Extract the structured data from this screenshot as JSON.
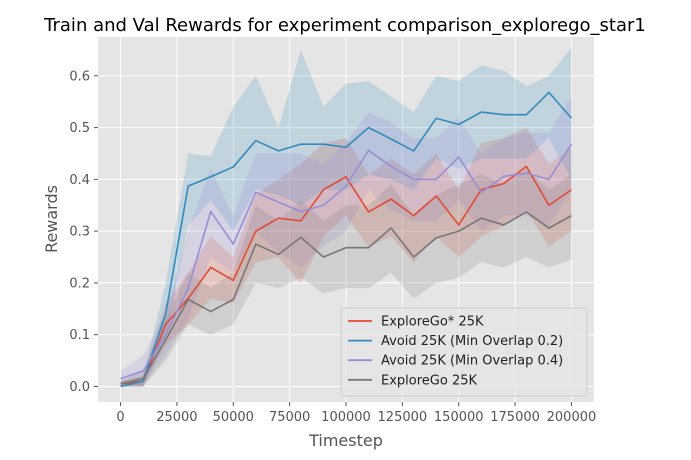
{
  "chart_data": {
    "type": "line",
    "title": "Train and Val Rewards for experiment comparison_explorego_star1",
    "xlabel": "Timestep",
    "ylabel": "Rewards",
    "xlim": [
      -10000,
      210000
    ],
    "ylim": [
      -0.03,
      0.675
    ],
    "xticks": [
      0,
      25000,
      50000,
      75000,
      100000,
      125000,
      150000,
      175000,
      200000
    ],
    "yticks": [
      0.0,
      0.1,
      0.2,
      0.3,
      0.4,
      0.5,
      0.6
    ],
    "ytick_labels": [
      "0.0",
      "0.1",
      "0.2",
      "0.3",
      "0.4",
      "0.5",
      "0.6"
    ],
    "grid": true,
    "legend_position": "lower-right",
    "x": [
      0,
      10000,
      20000,
      30000,
      40000,
      50000,
      60000,
      70000,
      80000,
      90000,
      100000,
      110000,
      120000,
      130000,
      140000,
      150000,
      160000,
      170000,
      180000,
      190000,
      200000
    ],
    "series": [
      {
        "name": "ExploreGo* 25K",
        "color": "#E24A33",
        "values": [
          0.005,
          0.01,
          0.12,
          0.17,
          0.23,
          0.205,
          0.3,
          0.325,
          0.32,
          0.38,
          0.405,
          0.337,
          0.362,
          0.33,
          0.368,
          0.312,
          0.38,
          0.392,
          0.425,
          0.35,
          0.38
        ],
        "lower": [
          0.0,
          0.0,
          0.08,
          0.12,
          0.17,
          0.16,
          0.24,
          0.25,
          0.2,
          0.29,
          0.33,
          0.27,
          0.29,
          0.24,
          0.29,
          0.25,
          0.29,
          0.31,
          0.34,
          0.27,
          0.3
        ],
        "upper": [
          0.01,
          0.02,
          0.16,
          0.22,
          0.29,
          0.25,
          0.37,
          0.4,
          0.43,
          0.47,
          0.48,
          0.41,
          0.44,
          0.41,
          0.45,
          0.38,
          0.47,
          0.48,
          0.5,
          0.43,
          0.46
        ]
      },
      {
        "name": "Avoid 25K (Min Overlap 0.2)",
        "color": "#348ABD",
        "values": [
          0.0,
          0.01,
          0.14,
          0.387,
          0.405,
          0.424,
          0.475,
          0.455,
          0.468,
          0.468,
          0.462,
          0.5,
          0.478,
          0.455,
          0.518,
          0.506,
          0.53,
          0.525,
          0.525,
          0.568,
          0.518
        ],
        "lower": [
          0.0,
          0.0,
          0.09,
          0.31,
          0.36,
          0.3,
          0.38,
          0.37,
          0.35,
          0.38,
          0.38,
          0.41,
          0.4,
          0.38,
          0.44,
          0.42,
          0.44,
          0.44,
          0.44,
          0.48,
          0.4
        ],
        "upper": [
          0.01,
          0.02,
          0.2,
          0.45,
          0.445,
          0.54,
          0.6,
          0.5,
          0.65,
          0.54,
          0.585,
          0.59,
          0.56,
          0.53,
          0.6,
          0.59,
          0.62,
          0.61,
          0.58,
          0.6,
          0.655
        ]
      },
      {
        "name": "Avoid 25K (Min Overlap 0.4)",
        "color": "#988ED5",
        "values": [
          0.015,
          0.03,
          0.1,
          0.19,
          0.338,
          0.275,
          0.375,
          0.356,
          0.338,
          0.35,
          0.387,
          0.456,
          0.425,
          0.4,
          0.4,
          0.443,
          0.375,
          0.406,
          0.412,
          0.4,
          0.468
        ],
        "lower": [
          0.0,
          0.0,
          0.06,
          0.13,
          0.25,
          0.22,
          0.3,
          0.26,
          0.23,
          0.27,
          0.3,
          0.38,
          0.34,
          0.32,
          0.32,
          0.36,
          0.3,
          0.33,
          0.33,
          0.31,
          0.38
        ],
        "upper": [
          0.03,
          0.06,
          0.14,
          0.3,
          0.42,
          0.33,
          0.45,
          0.45,
          0.45,
          0.43,
          0.47,
          0.53,
          0.51,
          0.48,
          0.48,
          0.52,
          0.45,
          0.48,
          0.49,
          0.49,
          0.56
        ]
      },
      {
        "name": "ExploreGo 25K",
        "color": "#777777",
        "values": [
          0.005,
          0.015,
          0.09,
          0.168,
          0.145,
          0.168,
          0.275,
          0.255,
          0.288,
          0.25,
          0.268,
          0.268,
          0.306,
          0.25,
          0.287,
          0.3,
          0.325,
          0.312,
          0.337,
          0.306,
          0.33
        ],
        "lower": [
          0.0,
          0.0,
          0.05,
          0.12,
          0.1,
          0.12,
          0.2,
          0.19,
          0.21,
          0.18,
          0.19,
          0.19,
          0.22,
          0.17,
          0.2,
          0.21,
          0.24,
          0.23,
          0.25,
          0.23,
          0.245
        ],
        "upper": [
          0.01,
          0.03,
          0.13,
          0.22,
          0.19,
          0.22,
          0.35,
          0.32,
          0.36,
          0.32,
          0.35,
          0.35,
          0.39,
          0.33,
          0.37,
          0.39,
          0.41,
          0.39,
          0.42,
          0.38,
          0.41
        ]
      }
    ]
  }
}
